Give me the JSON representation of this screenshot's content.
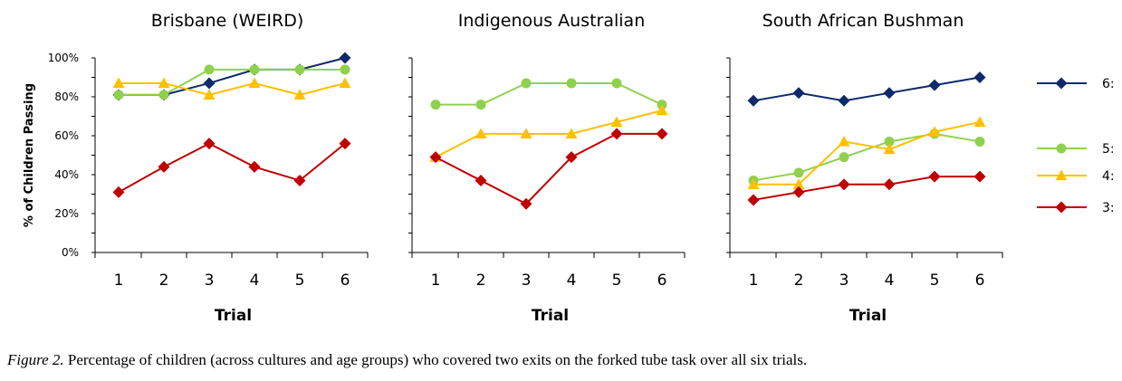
{
  "caption": {
    "lead": "Figure 2.",
    "text": "Percentage of children (across cultures and age groups) who covered two exits on the forked tube task over all six trials."
  },
  "chart_data": [
    {
      "type": "line",
      "title": "Brisbane (WEIRD)",
      "xlabel": "Trial",
      "ylabel": "% of Children Passing",
      "x": [
        1,
        2,
        3,
        4,
        5,
        6
      ],
      "ylim": [
        0,
        100
      ],
      "yticks": [
        "0%",
        "20%",
        "40%",
        "60%",
        "80%",
        "100%"
      ],
      "show_ytick_labels": true,
      "series": [
        {
          "key": "6",
          "color": "#0e2a6b",
          "marker": "diamond",
          "values": [
            81,
            81,
            87,
            94,
            94,
            100
          ]
        },
        {
          "key": "5",
          "color": "#8fd14f",
          "marker": "circle",
          "values": [
            81,
            81,
            94,
            94,
            94,
            94
          ]
        },
        {
          "key": "4",
          "color": "#ffc000",
          "marker": "triangle",
          "values": [
            87,
            87,
            81,
            87,
            81,
            87
          ]
        },
        {
          "key": "3",
          "color": "#c00000",
          "marker": "diamond",
          "values": [
            31,
            44,
            56,
            44,
            37,
            56
          ]
        }
      ]
    },
    {
      "type": "line",
      "title": "Indigenous Australian",
      "xlabel": "Trial",
      "ylabel": "",
      "x": [
        1,
        2,
        3,
        4,
        5,
        6
      ],
      "ylim": [
        0,
        100
      ],
      "show_ytick_labels": false,
      "series": [
        {
          "key": "5",
          "color": "#8fd14f",
          "marker": "circle",
          "values": [
            76,
            76,
            87,
            87,
            87,
            76
          ]
        },
        {
          "key": "4",
          "color": "#ffc000",
          "marker": "triangle",
          "values": [
            49,
            61,
            61,
            61,
            67,
            73
          ]
        },
        {
          "key": "3",
          "color": "#c00000",
          "marker": "diamond",
          "values": [
            49,
            37,
            25,
            49,
            61,
            61
          ]
        }
      ]
    },
    {
      "type": "line",
      "title": "South African Bushman",
      "xlabel": "Trial",
      "ylabel": "",
      "x": [
        1,
        2,
        3,
        4,
        5,
        6
      ],
      "ylim": [
        0,
        100
      ],
      "show_ytick_labels": false,
      "series": [
        {
          "key": "6",
          "color": "#0e2a6b",
          "marker": "diamond",
          "values": [
            78,
            82,
            78,
            82,
            86,
            90
          ]
        },
        {
          "key": "5",
          "color": "#8fd14f",
          "marker": "circle",
          "values": [
            37,
            41,
            49,
            57,
            61,
            57
          ]
        },
        {
          "key": "4",
          "color": "#ffc000",
          "marker": "triangle",
          "values": [
            35,
            35,
            57,
            53,
            62,
            67
          ]
        },
        {
          "key": "3",
          "color": "#c00000",
          "marker": "diamond",
          "values": [
            27,
            31,
            35,
            35,
            39,
            39
          ]
        }
      ]
    }
  ],
  "legend": {
    "placement": "right",
    "entries": [
      {
        "label": "6:",
        "color": "#0e2a6b",
        "marker": "diamond"
      },
      {
        "label": "5:",
        "color": "#8fd14f",
        "marker": "circle"
      },
      {
        "label": "4:",
        "color": "#ffc000",
        "marker": "triangle"
      },
      {
        "label": "3:",
        "color": "#c00000",
        "marker": "diamond"
      }
    ]
  }
}
